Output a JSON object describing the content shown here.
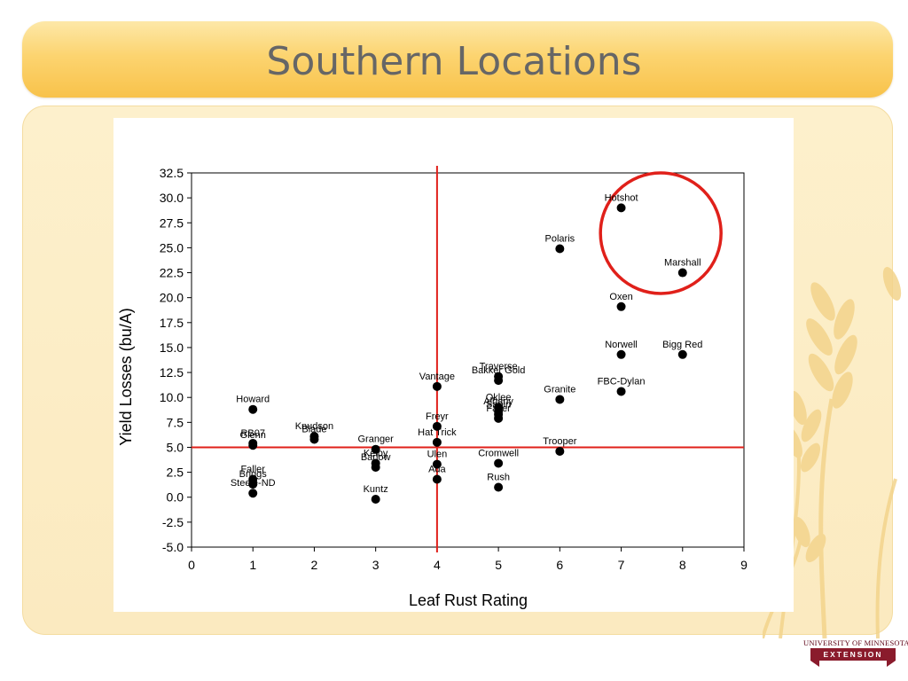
{
  "slide": {
    "title": "Southern Locations",
    "logo": {
      "line1": "UNIVERSITY OF MINNESOTA",
      "line2": "EXTENSION"
    }
  },
  "colors": {
    "title_gradient": [
      "#fde8a8",
      "#f8c24a"
    ],
    "panel": "#fbeac0",
    "reference_line": "#e0201a",
    "highlight_circle": "#e0201a",
    "points": "#000000"
  },
  "chart_data": {
    "type": "scatter",
    "title": "",
    "xlabel": "Leaf Rust Rating",
    "ylabel": "Yield Losses (bu/A)",
    "xlim": [
      0,
      9
    ],
    "ylim": [
      -5,
      32.5
    ],
    "xticks": [
      0,
      1,
      2,
      3,
      4,
      5,
      6,
      7,
      8,
      9
    ],
    "yticks": [
      "-5.0",
      "-2.5",
      "0.0",
      "2.5",
      "5.0",
      "7.5",
      "10.0",
      "12.5",
      "15.0",
      "17.5",
      "20.0",
      "22.5",
      "25.0",
      "27.5",
      "30.0",
      "32.5"
    ],
    "grid": false,
    "reference_lines": {
      "x": 4,
      "y": 5
    },
    "highlight": {
      "shape": "circle",
      "encloses": [
        "Hotshot",
        "Marshall"
      ]
    },
    "points": [
      {
        "label": "Hotshot",
        "x": 7,
        "y": 29.0
      },
      {
        "label": "Polaris",
        "x": 6,
        "y": 24.9
      },
      {
        "label": "Marshall",
        "x": 8,
        "y": 22.5
      },
      {
        "label": "Oxen",
        "x": 7,
        "y": 19.1
      },
      {
        "label": "Norwell",
        "x": 7,
        "y": 14.3
      },
      {
        "label": "Bigg Red",
        "x": 8,
        "y": 14.3
      },
      {
        "label": "Traverse",
        "x": 5,
        "y": 12.1
      },
      {
        "label": "Bakker Gold",
        "x": 5,
        "y": 11.7
      },
      {
        "label": "Vantage",
        "x": 4,
        "y": 11.1
      },
      {
        "label": "FBC-Dylan",
        "x": 7,
        "y": 10.6
      },
      {
        "label": "Granite",
        "x": 6,
        "y": 9.8
      },
      {
        "label": "Howard",
        "x": 1,
        "y": 8.8
      },
      {
        "label": "Oklee",
        "x": 5,
        "y": 9.0
      },
      {
        "label": "Albany",
        "x": 5,
        "y": 8.6
      },
      {
        "label": "Sabin",
        "x": 5,
        "y": 8.3
      },
      {
        "label": "Faller",
        "x": 5,
        "y": 7.9
      },
      {
        "label": "Freyr",
        "x": 4,
        "y": 7.1
      },
      {
        "label": "Knudson",
        "x": 2,
        "y": 6.1
      },
      {
        "label": "Blade",
        "x": 2,
        "y": 5.8
      },
      {
        "label": "RB07",
        "x": 1,
        "y": 5.4
      },
      {
        "label": "Glenn",
        "x": 1,
        "y": 5.2
      },
      {
        "label": "Hat Trick",
        "x": 4,
        "y": 5.5
      },
      {
        "label": "Granger",
        "x": 3,
        "y": 4.8
      },
      {
        "label": "Trooper",
        "x": 6,
        "y": 4.6
      },
      {
        "label": "Kelby",
        "x": 3,
        "y": 3.4
      },
      {
        "label": "Barlow",
        "x": 3,
        "y": 3.0
      },
      {
        "label": "Ulen",
        "x": 4,
        "y": 3.3
      },
      {
        "label": "Cromwell",
        "x": 5,
        "y": 3.4
      },
      {
        "label": "Ada",
        "x": 4,
        "y": 1.8
      },
      {
        "label": "Faller",
        "x": 1,
        "y": 1.8
      },
      {
        "label": "Briggs",
        "x": 1,
        "y": 1.3
      },
      {
        "label": "Steele-ND",
        "x": 1,
        "y": 0.4
      },
      {
        "label": "Rush",
        "x": 5,
        "y": 1.0
      },
      {
        "label": "Kuntz",
        "x": 3,
        "y": -0.2
      }
    ]
  }
}
